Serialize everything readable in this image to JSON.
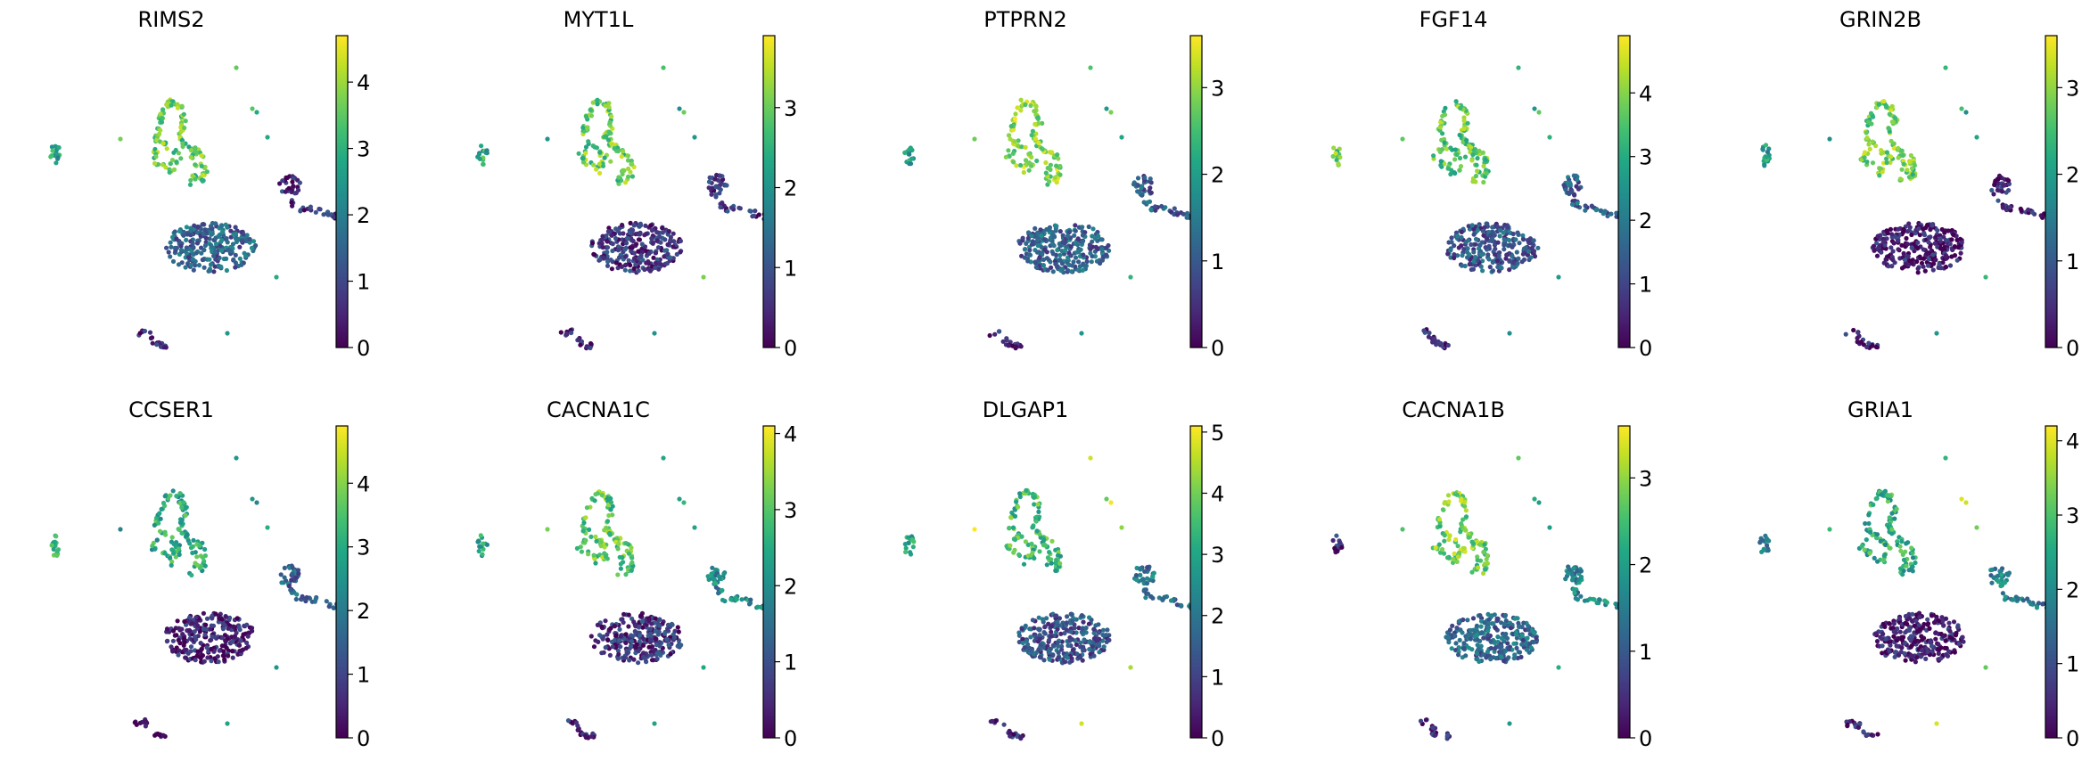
{
  "chart_data": [
    {
      "type": "scatter",
      "title": "RIMS2",
      "colorbar": {
        "max": 4.7,
        "ticks": [
          0,
          1,
          2,
          3,
          4
        ]
      },
      "colormap": "viridis",
      "cluster_levels": {
        "main_blob": 1.5,
        "upper_left_branch": 3.5,
        "right_arm": 0.6,
        "bottom_small": 0.5,
        "far_left": 2.8,
        "small_dots": 3.0
      }
    },
    {
      "type": "scatter",
      "title": "MYT1L",
      "colorbar": {
        "max": 3.9,
        "ticks": [
          0,
          1,
          2,
          3
        ]
      },
      "colormap": "viridis",
      "cluster_levels": {
        "main_blob": 0.6,
        "upper_left_branch": 3.0,
        "right_arm": 0.6,
        "bottom_small": 0.4,
        "far_left": 2.4,
        "small_dots": 2.5
      }
    },
    {
      "type": "scatter",
      "title": "PTPRN2",
      "colorbar": {
        "max": 3.6,
        "ticks": [
          0,
          1,
          2,
          3
        ]
      },
      "colormap": "viridis",
      "cluster_levels": {
        "main_blob": 1.1,
        "upper_left_branch": 3.0,
        "right_arm": 1.0,
        "bottom_small": 0.4,
        "far_left": 2.0,
        "small_dots": 2.3
      }
    },
    {
      "type": "scatter",
      "title": "FGF14",
      "colorbar": {
        "max": 4.9,
        "ticks": [
          0,
          1,
          2,
          3,
          4
        ]
      },
      "colormap": "viridis",
      "cluster_levels": {
        "main_blob": 1.3,
        "upper_left_branch": 3.6,
        "right_arm": 1.5,
        "bottom_small": 0.5,
        "far_left": 3.6,
        "small_dots": 3.0
      }
    },
    {
      "type": "scatter",
      "title": "GRIN2B",
      "colorbar": {
        "max": 3.6,
        "ticks": [
          0,
          1,
          2,
          3
        ]
      },
      "colormap": "viridis",
      "cluster_levels": {
        "main_blob": 0.3,
        "upper_left_branch": 2.8,
        "right_arm": 0.4,
        "bottom_small": 0.3,
        "far_left": 2.0,
        "small_dots": 2.2
      }
    },
    {
      "type": "scatter",
      "title": "CCSER1",
      "colorbar": {
        "max": 4.9,
        "ticks": [
          0,
          1,
          2,
          3,
          4
        ]
      },
      "colormap": "viridis",
      "cluster_levels": {
        "main_blob": 0.4,
        "upper_left_branch": 3.0,
        "right_arm": 1.5,
        "bottom_small": 0.4,
        "far_left": 3.4,
        "small_dots": 2.6
      }
    },
    {
      "type": "scatter",
      "title": "CACNA1C",
      "colorbar": {
        "max": 4.1,
        "ticks": [
          0,
          1,
          2,
          3,
          4
        ]
      },
      "colormap": "viridis",
      "cluster_levels": {
        "main_blob": 0.6,
        "upper_left_branch": 3.0,
        "right_arm": 1.9,
        "bottom_small": 0.5,
        "far_left": 2.4,
        "small_dots": 2.6
      }
    },
    {
      "type": "scatter",
      "title": "DLGAP1",
      "colorbar": {
        "max": 5.1,
        "ticks": [
          0,
          1,
          2,
          3,
          4,
          5
        ]
      },
      "colormap": "viridis",
      "cluster_levels": {
        "main_blob": 1.3,
        "upper_left_branch": 3.4,
        "right_arm": 2.0,
        "bottom_small": 0.6,
        "far_left": 3.0,
        "small_dots": 4.6
      }
    },
    {
      "type": "scatter",
      "title": "CACNA1B",
      "colorbar": {
        "max": 3.6,
        "ticks": [
          0,
          1,
          2,
          3
        ]
      },
      "colormap": "viridis",
      "cluster_levels": {
        "main_blob": 1.2,
        "upper_left_branch": 2.8,
        "right_arm": 1.6,
        "bottom_small": 0.5,
        "far_left": 0.4,
        "small_dots": 2.2
      }
    },
    {
      "type": "scatter",
      "title": "GRIA1",
      "colorbar": {
        "max": 4.2,
        "ticks": [
          0,
          1,
          2,
          3,
          4
        ]
      },
      "colormap": "viridis",
      "cluster_levels": {
        "main_blob": 0.3,
        "upper_left_branch": 2.6,
        "right_arm": 1.8,
        "bottom_small": 0.4,
        "far_left": 1.6,
        "small_dots": 3.3
      }
    }
  ]
}
